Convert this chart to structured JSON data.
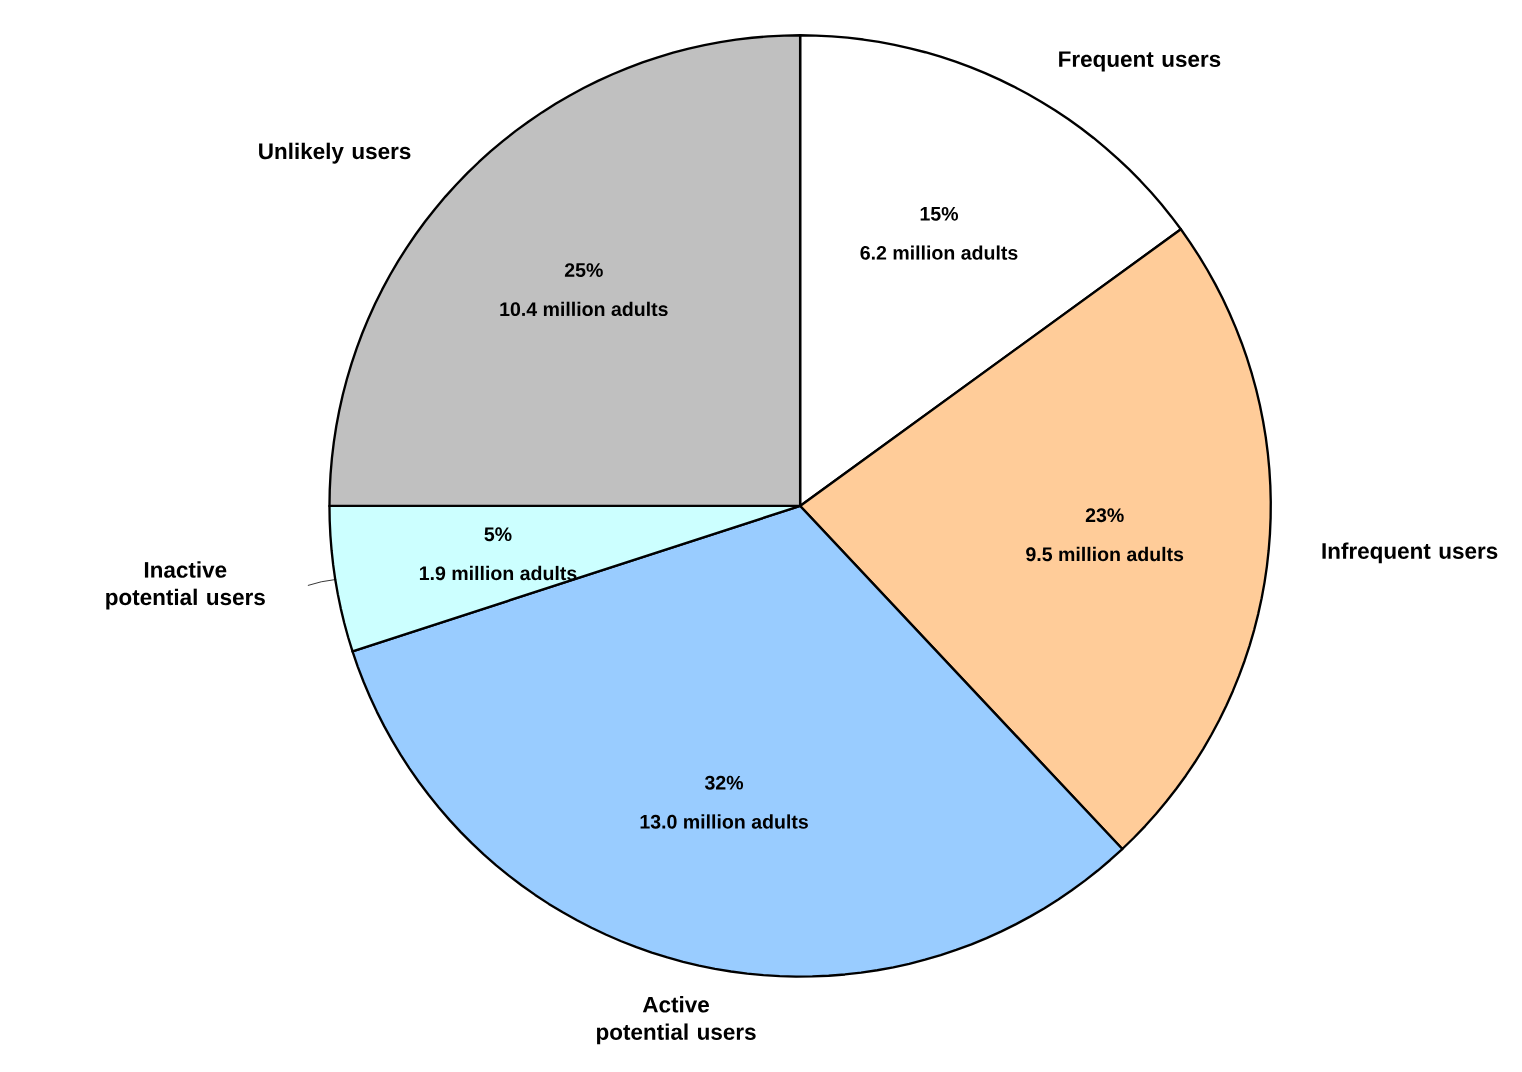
{
  "chart_data": {
    "type": "pie",
    "categories": [
      "Frequent users",
      "Infrequent users",
      "Active potential users",
      "Inactive potential users",
      "Unlikely users"
    ],
    "values": [
      15,
      23,
      32,
      5,
      25
    ],
    "colors": [
      "#ffffff",
      "#ffcc99",
      "#99ccff",
      "#ccffff",
      "#c0c0c0"
    ],
    "value_labels": [
      "15%",
      "23%",
      "32%",
      "5%",
      "25%"
    ],
    "annotations": [
      "6.2 million adults",
      "9.5 million adults",
      "13.0 million adults",
      "1.9 million adults",
      "10.4 million adults"
    ]
  }
}
